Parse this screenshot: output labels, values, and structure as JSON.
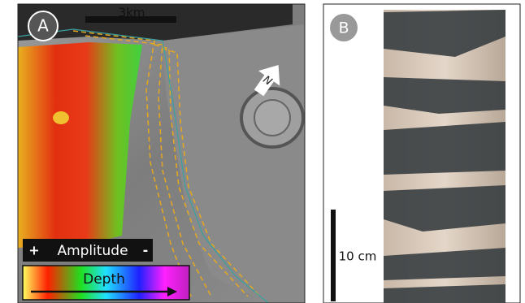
{
  "panel_a": {
    "label": "A",
    "scale_bar": "3km",
    "north": "N",
    "amplitude_legend": {
      "plus": "+",
      "title": "Amplitude",
      "minus": "-"
    },
    "depth_legend": {
      "title": "Depth"
    }
  },
  "panel_b": {
    "label": "B",
    "scale_bar": "10 cm"
  }
}
